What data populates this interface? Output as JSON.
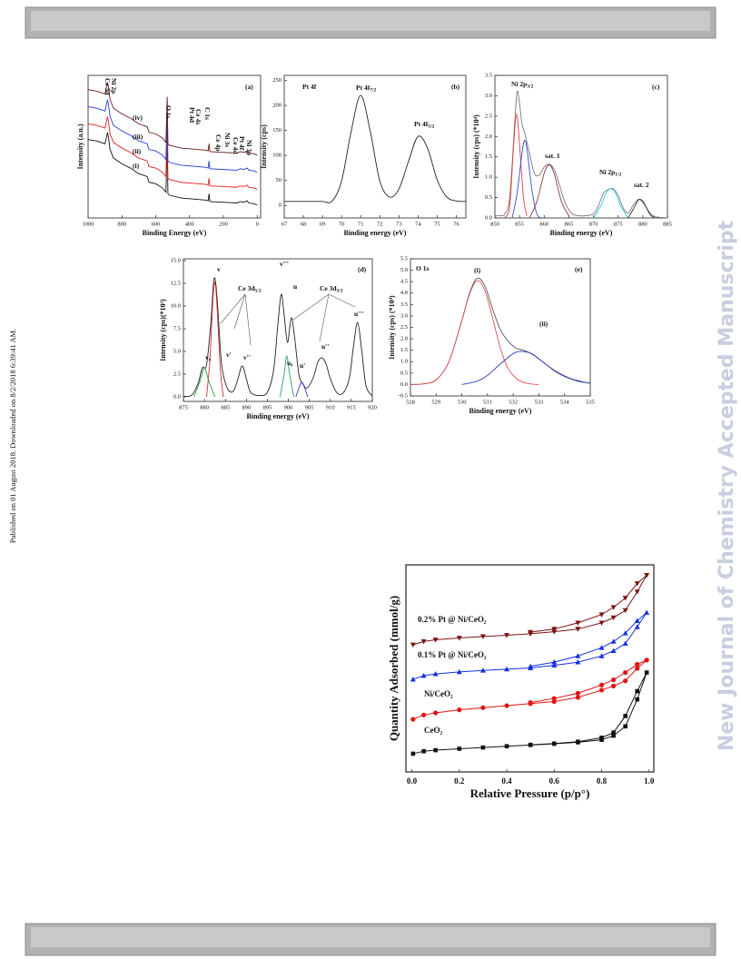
{
  "side_note": "Published on 01 August 2018. Downloaded on 8/2/2018 6:39:41 AM.",
  "watermark": "New Journal of Chemistry Accepted Manuscript",
  "chart_data": [
    {
      "type": "line",
      "xlabel": "Binding Energy (eV)",
      "ylabel": "Intensity (a.u.)",
      "xlim": [
        1000,
        -20
      ],
      "ylim": [
        0,
        100
      ],
      "xticks": [
        1000,
        800,
        600,
        400,
        200,
        0
      ],
      "x": [
        1000,
        950,
        900,
        885,
        880,
        870,
        850,
        800,
        750,
        700,
        650,
        640,
        600,
        560,
        540,
        532,
        528,
        520,
        450,
        400,
        300,
        290,
        285,
        280,
        200,
        120,
        100,
        80,
        60,
        50,
        20,
        0
      ],
      "annotations": [
        {
          "text": "(a)"
        },
        {
          "text": "Ce 3d"
        },
        {
          "text": "Ni 2p"
        },
        {
          "text": "O 1s"
        },
        {
          "text": "Pt 4d"
        },
        {
          "text": "Ce 4s"
        },
        {
          "text": "C 1s"
        },
        {
          "text": "Ce 4p"
        },
        {
          "text": "Ni 3s"
        },
        {
          "text": "Ce 4d"
        },
        {
          "text": "Pt 4f"
        },
        {
          "text": "Ni 3p"
        },
        {
          "text": "(iv)"
        },
        {
          "text": "(iii)"
        },
        {
          "text": "(ii)"
        },
        {
          "text": "(i)"
        }
      ],
      "series": [
        {
          "color": "#111111",
          "values": [
            55,
            54,
            52,
            60,
            57,
            48,
            42,
            38,
            35,
            31,
            29,
            25,
            24,
            21,
            18,
            50,
            17,
            16,
            14,
            13.5,
            12.5,
            12,
            17,
            11.5,
            11,
            10.5,
            11.5,
            11,
            12,
            10.5,
            10,
            9
          ]
        },
        {
          "color": "#e02020",
          "values": [
            66,
            65,
            63,
            71,
            68,
            59,
            53,
            49,
            46,
            42,
            40,
            36,
            35,
            32,
            29,
            61,
            28,
            27,
            25,
            24.5,
            23.5,
            23,
            28,
            22.5,
            22,
            21.5,
            22.5,
            22,
            23,
            21.5,
            21,
            20
          ]
        },
        {
          "color": "#1f3fd6",
          "values": [
            78,
            77,
            75,
            83,
            80,
            71,
            65,
            61,
            58,
            54,
            52,
            48,
            47,
            44,
            41,
            73,
            40,
            39,
            37,
            36.5,
            35.5,
            35,
            40,
            34.5,
            34,
            33.5,
            34.5,
            34,
            35,
            33.5,
            33,
            32
          ]
        },
        {
          "color": "#6b1a1a",
          "values": [
            90,
            89,
            87,
            95,
            92,
            83,
            77,
            73,
            70,
            66,
            64,
            60,
            59,
            56,
            53,
            85,
            52,
            51,
            49,
            48.5,
            47.5,
            47,
            52,
            46.5,
            46,
            45.5,
            46.5,
            46,
            47,
            45.5,
            45,
            44
          ]
        }
      ]
    },
    {
      "type": "line",
      "xlabel": "Binding energy (eV)",
      "ylabel": "Intensity (cps)",
      "xlim": [
        67,
        76.5
      ],
      "ylim": [
        -25,
        260
      ],
      "xticks": [
        67,
        68,
        69,
        70,
        71,
        72,
        73,
        74,
        75,
        76
      ],
      "yticks": [
        0,
        50,
        100,
        150,
        200,
        250
      ],
      "x": [
        67,
        67.5,
        68,
        68.5,
        69,
        69.5,
        70,
        70.5,
        71,
        71.5,
        72,
        72.5,
        73,
        73.5,
        74,
        74.5,
        75,
        75.5,
        76,
        76.5
      ],
      "annotations": [
        {
          "text": "Pt 4f"
        },
        {
          "text": "Pt 4f",
          "sub": "7/2"
        },
        {
          "text": "Pt 4f",
          "sub": "5/2"
        },
        {
          "text": "(b)"
        }
      ],
      "series": [
        {
          "color": "#222222",
          "values": [
            8,
            8,
            8,
            8,
            8.1,
            8.5,
            49,
            148,
            220,
            148,
            49,
            17,
            33,
            88,
            138,
            114,
            51,
            17,
            9,
            8
          ]
        }
      ]
    },
    {
      "type": "line",
      "xlabel": "Binding energy (eV)",
      "ylabel": "Intensity (cps) (*10⁴)",
      "xlim": [
        850,
        885
      ],
      "ylim": [
        0,
        3.5
      ],
      "xticks": [
        850,
        855,
        860,
        865,
        870,
        875,
        880,
        885
      ],
      "yticks": [
        {
          "value": 0,
          "label": "0.0"
        },
        0.5,
        {
          "value": 1,
          "label": "1.0"
        },
        1.5,
        {
          "value": 2,
          "label": "2.0"
        },
        2.5,
        {
          "value": 3,
          "label": "3.0"
        },
        3.5
      ],
      "annotations": [
        {
          "text": "Ni 2p",
          "sub": "3/2"
        },
        {
          "text": "sat. 1"
        },
        {
          "text": "Ni 2p",
          "sub": "1/2"
        },
        {
          "text": "sat. 2"
        },
        {
          "text": "(c)"
        }
      ],
      "series": [
        {
          "color": "#777777",
          "x": [
            850,
            851,
            852,
            853,
            854,
            854.5,
            855,
            855.5,
            856,
            857,
            858,
            859,
            860,
            861,
            862,
            863,
            864,
            865,
            866,
            868,
            870,
            871,
            872,
            873,
            874,
            875,
            876,
            877,
            878,
            879,
            880,
            881,
            882,
            883,
            885
          ],
          "values": [
            0.05,
            0.06,
            0.1,
            0.5,
            2.3,
            3.1,
            2.8,
            2.3,
            2.1,
            1.6,
            1.1,
            1.05,
            1.25,
            1.32,
            1.2,
            0.85,
            0.45,
            0.2,
            0.08,
            0.05,
            0.1,
            0.3,
            0.6,
            0.7,
            0.72,
            0.55,
            0.25,
            0.12,
            0.3,
            0.45,
            0.42,
            0.2,
            0.06,
            0.02,
            0
          ]
        },
        {
          "color": "#e04040",
          "x": [
            852,
            853,
            853.8,
            854.4,
            855,
            855.8,
            856.5
          ],
          "values": [
            0,
            0.3,
            1.8,
            2.55,
            1.8,
            0.5,
            0.05
          ]
        },
        {
          "color": "#3050d0",
          "x": [
            853.5,
            854.5,
            855.5,
            856,
            856.5,
            857.5,
            858.5,
            859.5
          ],
          "values": [
            0,
            0.6,
            1.6,
            1.9,
            1.7,
            0.7,
            0.1,
            0
          ]
        },
        {
          "color": "#8b3a3a",
          "x": [
            857,
            858.5,
            860,
            861,
            862,
            863.5,
            865
          ],
          "values": [
            0,
            0.4,
            1.1,
            1.3,
            1.1,
            0.4,
            0.05
          ]
        },
        {
          "color": "#30d0e0",
          "x": [
            870,
            871.5,
            872.5,
            873.5,
            874.5,
            875.5,
            877
          ],
          "values": [
            0,
            0.3,
            0.6,
            0.72,
            0.6,
            0.3,
            0
          ]
        },
        {
          "color": "#333333",
          "x": [
            877,
            878,
            879,
            879.5,
            880.5,
            881.5,
            882.5
          ],
          "values": [
            0,
            0.2,
            0.42,
            0.45,
            0.3,
            0.08,
            0
          ]
        }
      ]
    },
    {
      "type": "line",
      "xlabel": "Binding energy (eV)",
      "ylabel": "Intensity (cps)(*10³)",
      "xlim": [
        875,
        920
      ],
      "ylim": [
        -0.5,
        15.2
      ],
      "xticks": [
        875,
        880,
        885,
        890,
        895,
        900,
        905,
        910,
        915,
        920
      ],
      "yticks": [
        {
          "value": 0,
          "label": "0.0"
        },
        2.5,
        {
          "value": 5,
          "label": "5.0"
        },
        7.5,
        {
          "value": 10,
          "label": "10.0"
        },
        12.5,
        {
          "value": 15,
          "label": "15.0"
        }
      ],
      "annotations": [
        {
          "text": "(d)"
        },
        {
          "text": "v"
        },
        {
          "text": "Ce 3d",
          "sub": "5/2"
        },
        {
          "text": "v₀"
        },
        {
          "text": "v'"
        },
        {
          "text": "v''"
        },
        {
          "text": "v'''"
        },
        {
          "text": "u"
        },
        {
          "text": "u₀"
        },
        {
          "text": "u'"
        },
        {
          "text": "u''"
        },
        {
          "text": "u'''"
        },
        {
          "text": "Ce 3d",
          "sub": "3/2"
        }
      ],
      "series": [
        {
          "color": "#222222",
          "x": [
            875,
            877,
            878.5,
            879.5,
            880.5,
            881.5,
            882.3,
            883,
            884,
            885,
            886,
            887,
            888,
            889,
            890,
            891,
            893,
            895,
            896.5,
            897.5,
            898.3,
            899,
            899.8,
            900.7,
            901.5,
            902.5,
            903.5,
            904.5,
            906,
            907,
            908,
            909,
            910,
            911.5,
            913,
            914.5,
            915.5,
            916.5,
            917.5,
            918.5,
            920
          ],
          "values": [
            0.05,
            0.2,
            1.5,
            3.2,
            3.5,
            8,
            13,
            11,
            4,
            1.5,
            0.6,
            0.7,
            2,
            3.4,
            2,
            0.5,
            0.15,
            0.5,
            3,
            8,
            11.3,
            9,
            6,
            8.7,
            6.5,
            2.5,
            1.4,
            1,
            2.2,
            3.8,
            4.3,
            3.6,
            2,
            0.5,
            0.4,
            2,
            5.5,
            8.2,
            5,
            1.2,
            0.1
          ]
        },
        {
          "color": "#d03030",
          "x": [
            880.5,
            881.3,
            882,
            882.5,
            883,
            883.8,
            884.5
          ],
          "values": [
            0,
            4,
            10.5,
            12.6,
            10,
            3,
            0
          ]
        },
        {
          "color": "#3a9a3a",
          "x": [
            877.5,
            879,
            880,
            881,
            882.5
          ],
          "values": [
            0,
            1.8,
            3.2,
            1.8,
            0
          ]
        },
        {
          "color": "#30a060",
          "x": [
            898,
            899,
            899.6,
            900.3,
            901.3
          ],
          "values": [
            0,
            2.5,
            4.5,
            2.5,
            0
          ]
        },
        {
          "color": "#3030c0",
          "x": [
            901.8,
            902.6,
            903.2,
            903.8,
            904.6
          ],
          "values": [
            0,
            1.1,
            1.6,
            1.1,
            0
          ]
        }
      ]
    },
    {
      "type": "line",
      "xlabel": "Binding energy (eV)",
      "ylabel": "Intensity (cps) (*10⁴)",
      "xlim": [
        528,
        535
      ],
      "ylim": [
        -0.5,
        5.5
      ],
      "xticks": [
        528,
        529,
        530,
        531,
        532,
        533,
        534,
        535
      ],
      "yticks": [
        -0.5,
        {
          "value": 0,
          "label": "0.0"
        },
        0.5,
        {
          "value": 1,
          "label": "1.0"
        },
        1.5,
        {
          "value": 2,
          "label": "2.0"
        },
        2.5,
        {
          "value": 3,
          "label": "3.0"
        },
        3.5,
        {
          "value": 4,
          "label": "4.0"
        },
        4.5,
        {
          "value": 5,
          "label": "5.0"
        },
        5.5
      ],
      "annotations": [
        {
          "text": "O 1s"
        },
        {
          "text": "(e)"
        },
        {
          "text": "(i)"
        },
        {
          "text": "(ii)"
        }
      ],
      "series": [
        {
          "color": "#555555",
          "x": [
            528,
            528.5,
            529,
            529.5,
            530,
            530.3,
            530.6,
            530.9,
            531.2,
            531.5,
            531.8,
            532.1,
            532.4,
            532.8,
            533.2,
            533.6,
            534,
            534.5,
            535
          ],
          "values": [
            0,
            0.03,
            0.2,
            1.0,
            2.8,
            4.0,
            4.65,
            4.3,
            3.3,
            2.4,
            1.9,
            1.6,
            1.5,
            1.3,
            0.95,
            0.6,
            0.35,
            0.15,
            0.05
          ]
        },
        {
          "color": "#e05050",
          "x": [
            528,
            528.5,
            529,
            529.5,
            530,
            530.3,
            530.6,
            530.9,
            531.2,
            531.5,
            531.8,
            532.2,
            532.6,
            533
          ],
          "values": [
            0,
            0.03,
            0.2,
            1.0,
            2.8,
            3.95,
            4.55,
            4.1,
            2.9,
            1.6,
            0.7,
            0.2,
            0.04,
            0
          ]
        },
        {
          "color": "#3040c0",
          "x": [
            530,
            530.6,
            531,
            531.5,
            532,
            532.3,
            532.7,
            533.2,
            533.7,
            534.2,
            534.7,
            535
          ],
          "values": [
            0,
            0.15,
            0.4,
            0.9,
            1.35,
            1.45,
            1.35,
            0.95,
            0.55,
            0.28,
            0.12,
            0.06
          ]
        }
      ]
    },
    {
      "type": "line",
      "xlabel": "Relative Pressure (p/p°)",
      "ylabel": "Quantity Adsorbed (mmol/g)",
      "xlim": [
        -0.025,
        1.02
      ],
      "ylim": [
        0,
        100
      ],
      "xticks": [
        {
          "value": 0,
          "label": "0.0"
        },
        0.2,
        0.4,
        0.6,
        0.8,
        {
          "value": 1,
          "label": "1.0"
        }
      ],
      "x": [
        0.005,
        0.05,
        0.1,
        0.2,
        0.3,
        0.4,
        0.5,
        0.6,
        0.7,
        0.8,
        0.85,
        0.9,
        0.95,
        0.99,
        0.95,
        0.9,
        0.85,
        0.8,
        0.7,
        0.6,
        0.5
      ],
      "series": [
        {
          "name": "CeO₂",
          "color": "#111111",
          "values": [
            8.8,
            10,
            10.5,
            11.2,
            11.8,
            12.4,
            13,
            13.6,
            14.3,
            15.5,
            17.5,
            22,
            35,
            48,
            39,
            27,
            19,
            16.5,
            14.6,
            13.7,
            13.1
          ]
        },
        {
          "name": "Ni/CeO₂",
          "color": "#e01515",
          "values": [
            25.4,
            27.5,
            28.5,
            30,
            31,
            32,
            33,
            34,
            36,
            39.5,
            41.5,
            44,
            50,
            54,
            52,
            48,
            44.5,
            42,
            38,
            35.5,
            33.5
          ]
        },
        {
          "name": "0.1% Pt @ Ni/CeO₂",
          "color": "#1530e0",
          "values": [
            44.7,
            46.5,
            47.3,
            48.3,
            49,
            49.6,
            50.2,
            51.5,
            53,
            56,
            58.5,
            62,
            70,
            77,
            73,
            67,
            63,
            60,
            56,
            53,
            51
          ]
        },
        {
          "name": "0.2% Pt @ Ni/CeO₂",
          "color": "#7a1515",
          "values": [
            61.4,
            63,
            63.8,
            64.7,
            65.4,
            66,
            66.7,
            67.7,
            69,
            72,
            74.5,
            78,
            87,
            95,
            91,
            84,
            79.5,
            76,
            72,
            69,
            67.5
          ]
        }
      ]
    }
  ]
}
